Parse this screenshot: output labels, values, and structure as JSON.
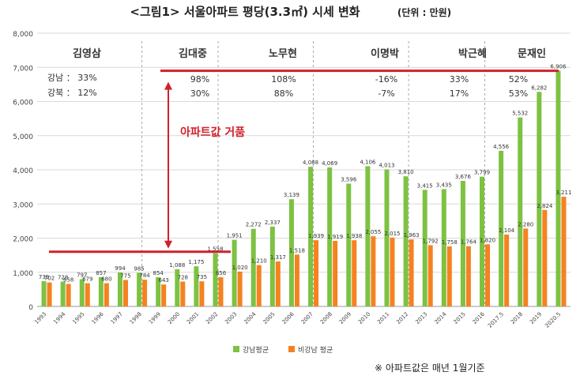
{
  "chart_data": {
    "type": "bar",
    "title": "<그림1> 서울아파트 평당(3.3㎡) 시세 변화",
    "unit_note": "(단위 : 만원)",
    "footnote": "※ 아파트값은 매년 1월기준",
    "ylim": [
      0,
      8000
    ],
    "y_ticks": [
      "0",
      "1,000",
      "2,000",
      "3,000",
      "4,000",
      "5,000",
      "6,000",
      "7,000",
      "8,000"
    ],
    "grid": true,
    "legend_position": "bottom",
    "categories": [
      "1993",
      "1994",
      "1995",
      "1996",
      "1997",
      "1998",
      "1999",
      "2000",
      "2001",
      "2002",
      "2003",
      "2004",
      "2005",
      "2006",
      "2007",
      "2008",
      "2009",
      "2010",
      "2011",
      "2012",
      "2013",
      "2014",
      "2015",
      "2016",
      "2017.5",
      "2018",
      "2019",
      "2020.5"
    ],
    "series": [
      {
        "name": "강남평균",
        "color": "#7dc242",
        "values": [
          739,
          728,
          797,
          857,
          994,
          985,
          854,
          1088,
          1175,
          1558,
          1951,
          2272,
          2337,
          3139,
          4088,
          4069,
          3596,
          4106,
          4013,
          3810,
          3415,
          3435,
          3676,
          3799,
          4556,
          5532,
          6282,
          6906
        ],
        "labels": [
          "739",
          "728",
          "797",
          "857",
          "994",
          "985",
          "854",
          "1,088",
          "1,175",
          "1,558",
          "1,951",
          "2,272",
          "2,337",
          "3,139",
          "4,088",
          "4,069",
          "3,596",
          "4,106",
          "4,013",
          "3,810",
          "3,415",
          "3,435",
          "3,676",
          "3,799",
          "4,556",
          "5,532",
          "6,282",
          "6,906"
        ]
      },
      {
        "name": "비강남 평균",
        "color": "#f58220",
        "values": [
          702,
          658,
          679,
          680,
          775,
          784,
          643,
          728,
          735,
          856,
          1020,
          1210,
          1317,
          1518,
          1939,
          1919,
          1938,
          2055,
          2015,
          1963,
          1792,
          1758,
          1764,
          1820,
          2104,
          2280,
          2824,
          3211
        ],
        "labels": [
          "702",
          "658",
          "679",
          "680",
          "775",
          "784",
          "643",
          "728",
          "735",
          "856",
          "1,020",
          "1,210",
          "1,317",
          "1,518",
          "1,939",
          "1,919",
          "1,938",
          "2,055",
          "2,015",
          "1,963",
          "1,792",
          "1,758",
          "1,764",
          "1,820",
          "2,104",
          "2,280",
          "2,824",
          "3,211"
        ]
      }
    ],
    "administrations": [
      {
        "name": "김영삼"
      },
      {
        "name": "김대중",
        "gangnam": "98%",
        "gangbuk": "30%"
      },
      {
        "name": "노무현",
        "gangnam": "108%",
        "gangbuk": "88%"
      },
      {
        "name": "이명박",
        "gangnam": "-16%",
        "gangbuk": "-7%"
      },
      {
        "name": "박근혜",
        "gangnam": "33%",
        "gangbuk": "17%"
      },
      {
        "name": "문재인",
        "gangnam": "52%",
        "gangbuk": "53%"
      }
    ],
    "row_labels": {
      "gangnam": "강남 ： 33%",
      "gangbuk": "강북 ： 12%"
    },
    "annotation": "아파트값 거품",
    "reference_lines": [
      1600,
      6900
    ]
  }
}
